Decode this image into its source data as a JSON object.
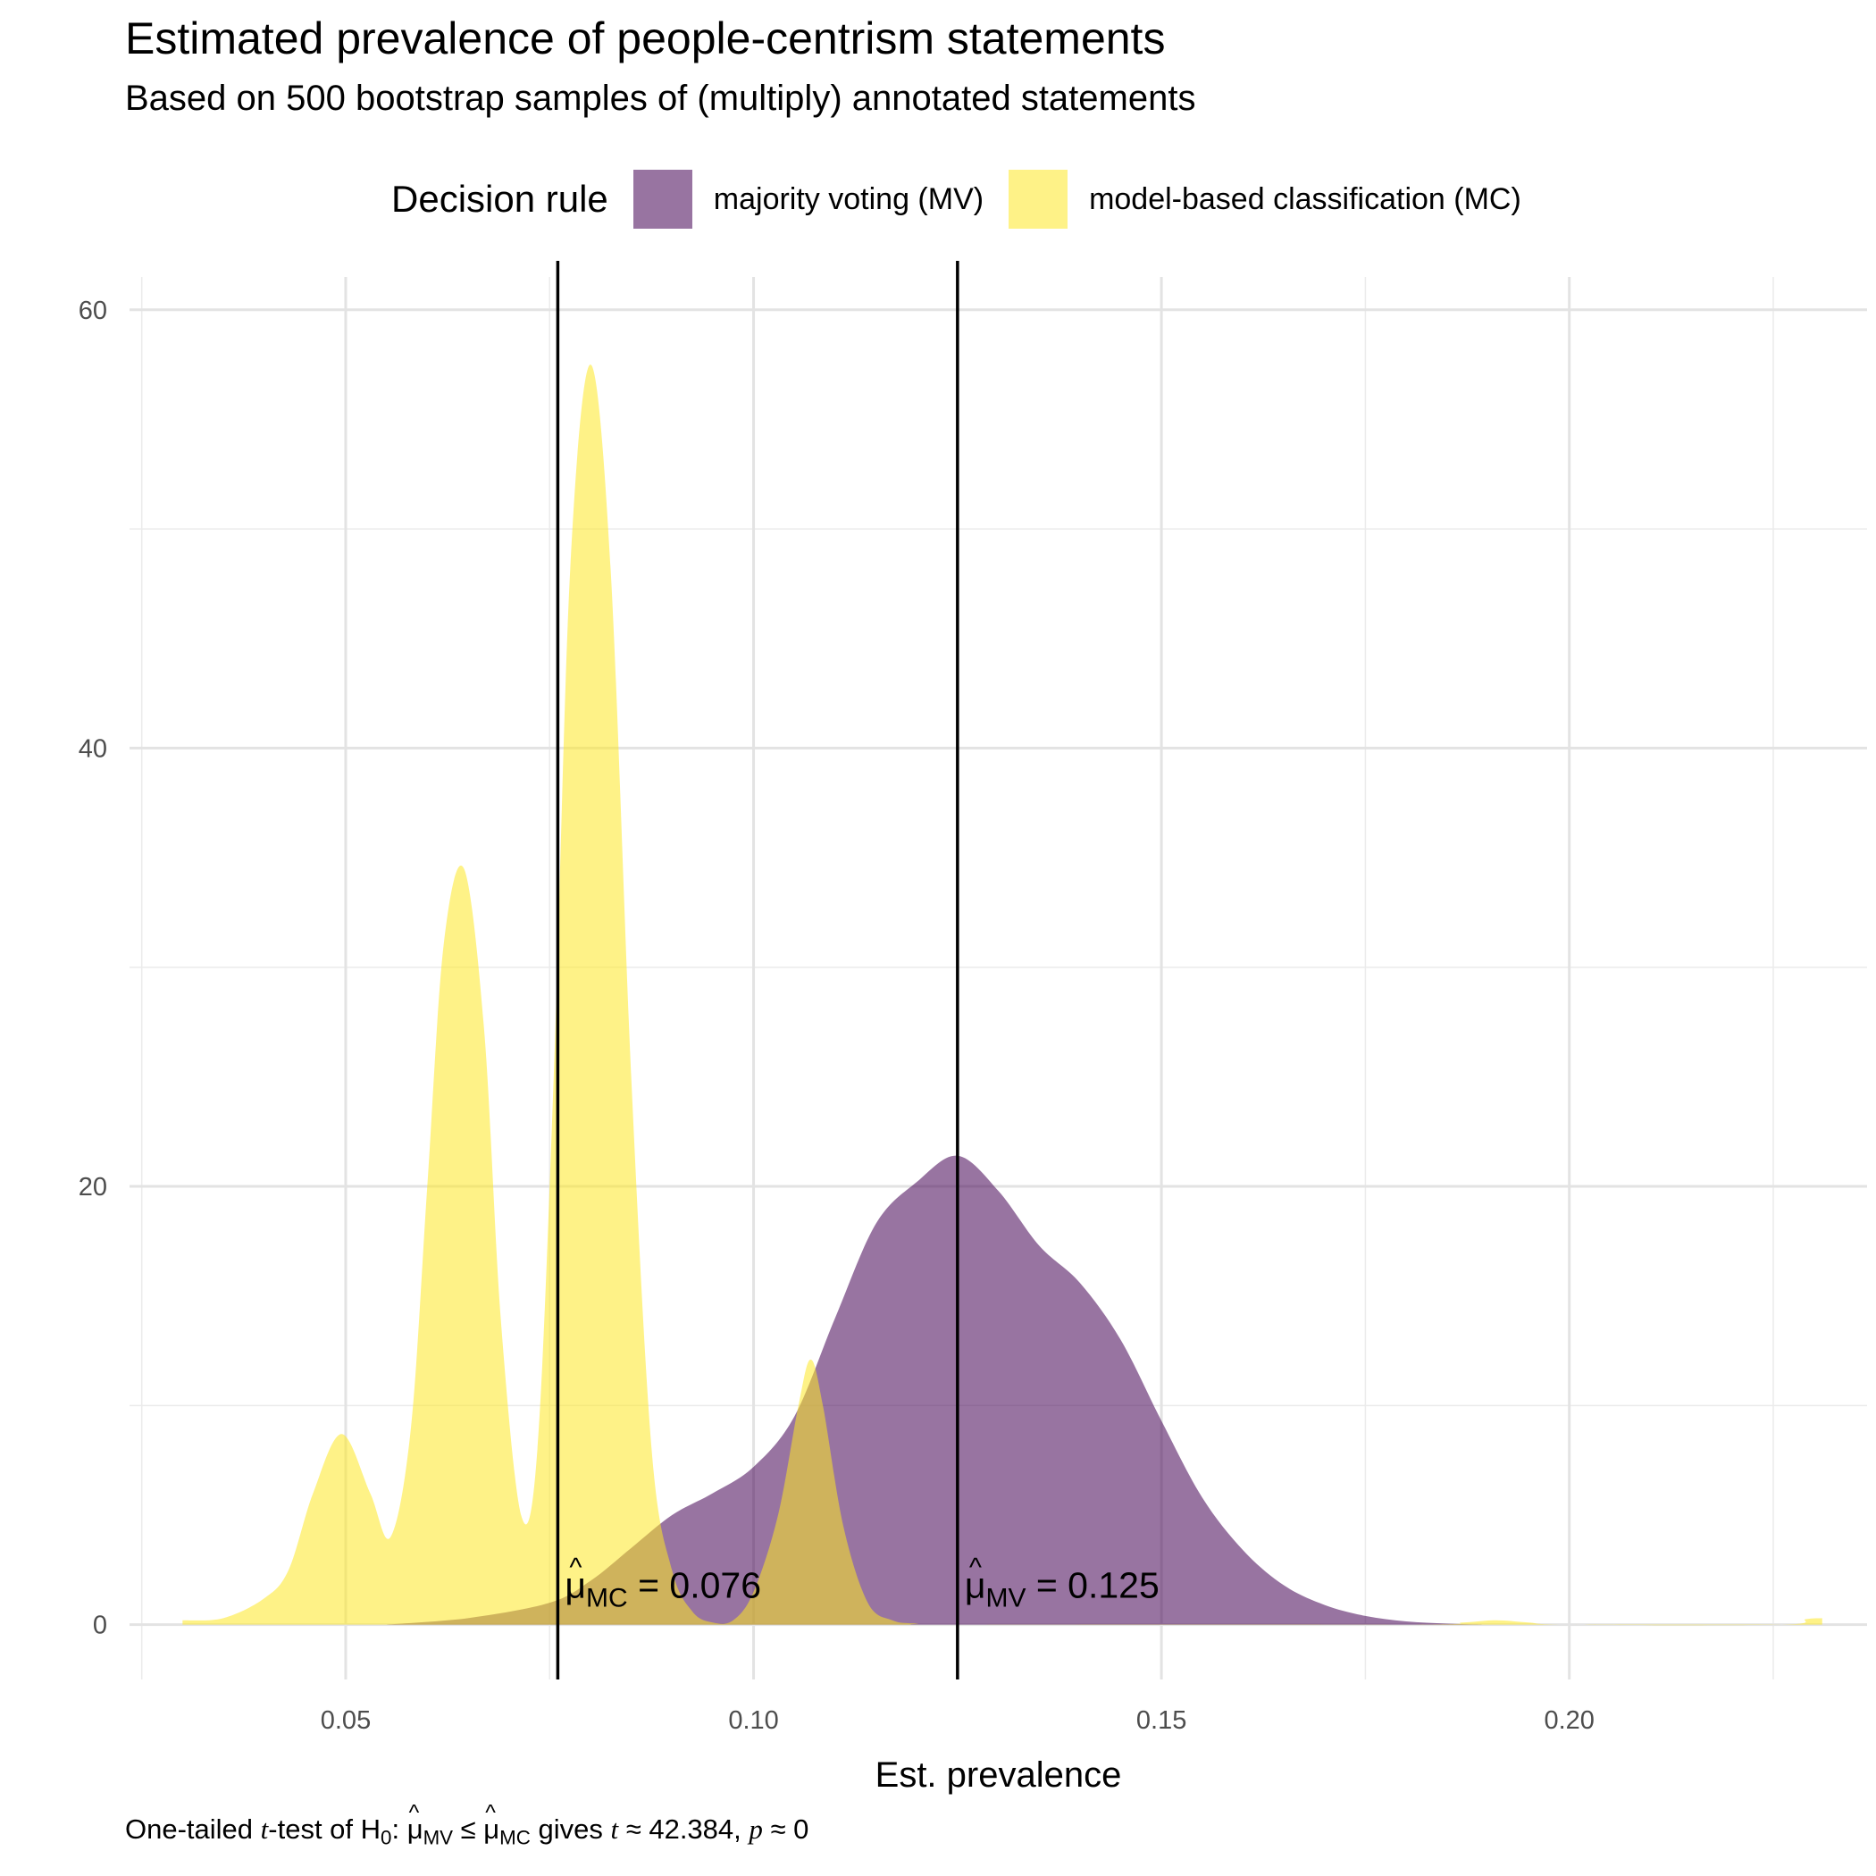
{
  "chart_data": {
    "type": "area",
    "title": "Estimated prevalence of people-centrism statements",
    "subtitle": "Based on 500 bootstrap samples of (multiply) annotated statements",
    "xlabel": "Est. prevalence",
    "ylabel": "",
    "xlim": [
      0.0235,
      0.2365
    ],
    "ylim": [
      -2.5,
      61.5
    ],
    "x_ticks": [
      0.05,
      0.1,
      0.15,
      0.2
    ],
    "x_tick_labels": [
      "0.05",
      "0.10",
      "0.15",
      "0.20"
    ],
    "y_ticks": [
      0,
      20,
      40,
      60
    ],
    "y_tick_labels": [
      "0",
      "20",
      "40",
      "60"
    ],
    "grid": true,
    "legend": {
      "title": "Decision rule",
      "position": "top",
      "entries": [
        "majority voting (MV)",
        "model-based classification (MC)"
      ]
    },
    "series": [
      {
        "name": "majority voting (MV)",
        "color": "#440154",
        "fill_opacity": 0.55,
        "x": [
          0.055,
          0.065,
          0.075,
          0.08,
          0.085,
          0.09,
          0.095,
          0.1,
          0.105,
          0.11,
          0.115,
          0.12,
          0.125,
          0.13,
          0.135,
          0.14,
          0.145,
          0.15,
          0.155,
          0.16,
          0.165,
          0.17,
          0.175,
          0.18,
          0.185,
          0.19
        ],
        "y": [
          0,
          0.3,
          1.0,
          2.0,
          3.5,
          5.0,
          6.0,
          7.2,
          9.5,
          14.0,
          18.3,
          20.2,
          21.4,
          19.8,
          17.3,
          15.6,
          13.0,
          9.3,
          5.8,
          3.4,
          1.8,
          0.9,
          0.4,
          0.15,
          0.05,
          0
        ]
      },
      {
        "name": "model-based classification (MC)",
        "color": "#FDE725",
        "fill_opacity": 0.55,
        "x": [
          0.03,
          0.035,
          0.04,
          0.043,
          0.046,
          0.0495,
          0.053,
          0.0555,
          0.058,
          0.06,
          0.062,
          0.0645,
          0.067,
          0.069,
          0.0715,
          0.0735,
          0.0755,
          0.0775,
          0.08,
          0.0825,
          0.085,
          0.0875,
          0.09,
          0.0925,
          0.095,
          0.0975,
          0.1,
          0.103,
          0.1055,
          0.107,
          0.1085,
          0.111,
          0.114,
          0.117,
          0.12,
          0.125,
          0.18,
          0.187,
          0.191,
          0.195,
          0.2,
          0.226,
          0.229,
          0.231
        ],
        "y": [
          0.2,
          0.3,
          1.2,
          2.5,
          6.0,
          8.7,
          6.0,
          4.0,
          9.0,
          20.0,
          31.0,
          34.5,
          27.0,
          14.0,
          5.0,
          8.0,
          25.0,
          48.0,
          57.5,
          48.0,
          25.0,
          8.0,
          2.5,
          0.6,
          0.1,
          0.2,
          1.5,
          5.0,
          10.0,
          12.1,
          10.0,
          4.5,
          1.0,
          0.2,
          0.05,
          0,
          0,
          0.1,
          0.2,
          0.1,
          0,
          0,
          0.25,
          0.3
        ]
      }
    ],
    "reference_lines": [
      {
        "x": 0.076,
        "label_symbol": "μ",
        "label_subscript": "MC",
        "label_value": "= 0.076"
      },
      {
        "x": 0.125,
        "label_symbol": "μ",
        "label_subscript": "MV",
        "label_value": "= 0.125"
      }
    ],
    "caption": {
      "t1": "One-tailed ",
      "t_italic": "t",
      "t2": "-test of H",
      "h_sub": "0",
      "t3": ":  ",
      "mu": "μ",
      "sub_mv": "MV",
      "leq": " ≤ ",
      "sub_mc": "MC",
      "t4": " gives ",
      "t_italic2": "t",
      "t5": " ≈ 42.384,  ",
      "p_italic": "p",
      "t6": " ≈ 0"
    }
  }
}
